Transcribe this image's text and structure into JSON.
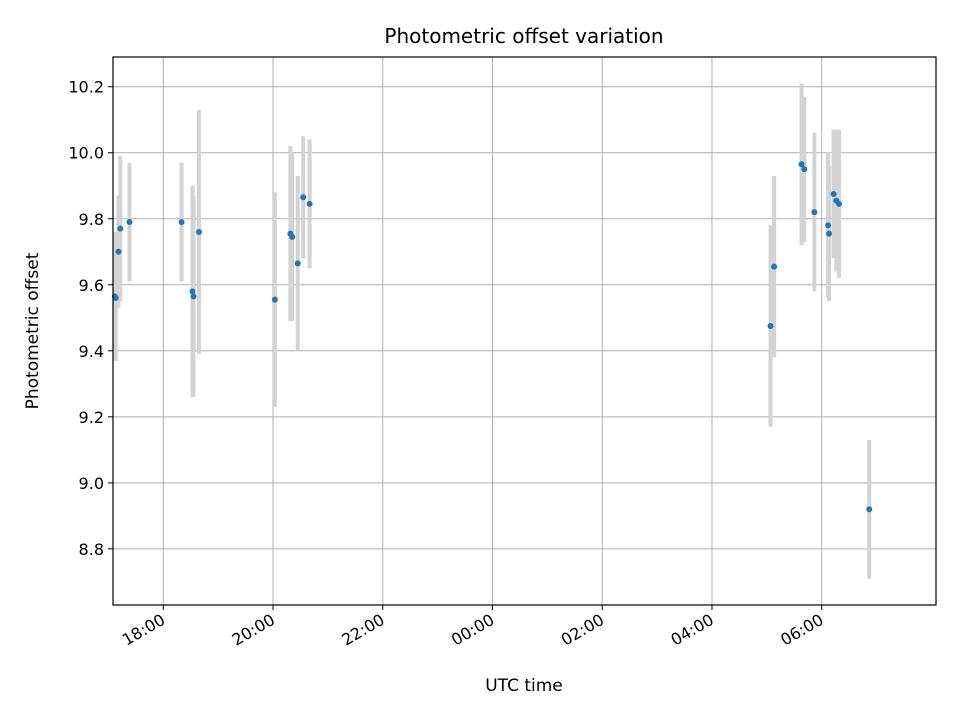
{
  "chart_data": {
    "type": "scatter",
    "title": "Photometric offset variation",
    "xlabel": "UTC time",
    "ylabel": "Photometric offset",
    "x_tick_labels": [
      "18:00",
      "20:00",
      "22:00",
      "00:00",
      "02:00",
      "04:00",
      "06:00"
    ],
    "y_tick_labels": [
      "8.8",
      "9.0",
      "9.2",
      "9.4",
      "9.6",
      "9.8",
      "10.0",
      "10.2"
    ],
    "xlim": [
      "17:05",
      "08:05"
    ],
    "ylim": [
      8.63,
      10.29
    ],
    "grid": true,
    "marker_color": "#1f77b4",
    "errorbar_color": "#d3d3d3",
    "series": [
      {
        "points": [
          {
            "x": "17:07",
            "y": 9.565,
            "lo": 9.37,
            "hi": 9.76
          },
          {
            "x": "17:08",
            "y": 9.56,
            "lo": 9.37,
            "hi": 9.76
          },
          {
            "x": "17:11",
            "y": 9.7,
            "lo": 9.53,
            "hi": 9.87
          },
          {
            "x": "17:13",
            "y": 9.77,
            "lo": 9.55,
            "hi": 9.99
          },
          {
            "x": "17:23",
            "y": 9.79,
            "lo": 9.61,
            "hi": 9.97
          },
          {
            "x": "18:20",
            "y": 9.79,
            "lo": 9.61,
            "hi": 9.97
          },
          {
            "x": "18:32",
            "y": 9.58,
            "lo": 9.26,
            "hi": 9.9
          },
          {
            "x": "18:33",
            "y": 9.565,
            "lo": 9.26,
            "hi": 9.87
          },
          {
            "x": "18:39",
            "y": 9.76,
            "lo": 9.39,
            "hi": 10.13
          },
          {
            "x": "20:02",
            "y": 9.555,
            "lo": 9.23,
            "hi": 9.88
          },
          {
            "x": "20:19",
            "y": 9.755,
            "lo": 9.49,
            "hi": 10.02
          },
          {
            "x": "20:21",
            "y": 9.745,
            "lo": 9.49,
            "hi": 10.0
          },
          {
            "x": "20:27",
            "y": 9.665,
            "lo": 9.4,
            "hi": 9.93
          },
          {
            "x": "20:33",
            "y": 9.865,
            "lo": 9.68,
            "hi": 10.05
          },
          {
            "x": "20:40",
            "y": 9.845,
            "lo": 9.65,
            "hi": 10.04
          },
          {
            "x": "05:04",
            "y": 9.475,
            "lo": 9.17,
            "hi": 9.78
          },
          {
            "x": "05:08",
            "y": 9.655,
            "lo": 9.38,
            "hi": 9.93
          },
          {
            "x": "05:38",
            "y": 9.965,
            "lo": 9.72,
            "hi": 10.21
          },
          {
            "x": "05:41",
            "y": 9.95,
            "lo": 9.73,
            "hi": 10.17
          },
          {
            "x": "05:52",
            "y": 9.82,
            "lo": 9.58,
            "hi": 10.06
          },
          {
            "x": "06:07",
            "y": 9.78,
            "lo": 9.56,
            "hi": 10.0
          },
          {
            "x": "06:08",
            "y": 9.755,
            "lo": 9.55,
            "hi": 9.96
          },
          {
            "x": "06:13",
            "y": 9.875,
            "lo": 9.68,
            "hi": 10.07
          },
          {
            "x": "06:16",
            "y": 9.855,
            "lo": 9.64,
            "hi": 10.07
          },
          {
            "x": "06:19",
            "y": 9.845,
            "lo": 9.62,
            "hi": 10.07
          },
          {
            "x": "06:52",
            "y": 8.92,
            "lo": 8.71,
            "hi": 9.13
          }
        ]
      }
    ]
  }
}
